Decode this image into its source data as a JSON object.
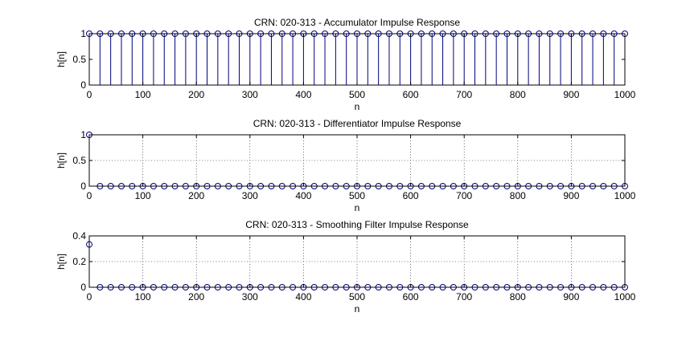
{
  "chart_data": [
    {
      "type": "stem",
      "title": "CRN: 020-313 - Accumulator Impulse Response",
      "xlabel": "n",
      "ylabel": "h[n]",
      "xlim": [
        0,
        1000
      ],
      "ylim": [
        0,
        1
      ],
      "xticks": [
        0,
        100,
        200,
        300,
        400,
        500,
        600,
        700,
        800,
        900,
        1000
      ],
      "xtick_labels": [
        "0",
        "100",
        "200",
        "300",
        "400",
        "500",
        "600",
        "700",
        "800",
        "900",
        "1000"
      ],
      "yticks": [
        0,
        0.5,
        1
      ],
      "ytick_labels": [
        "0",
        "0.5",
        "1"
      ],
      "grid": false,
      "marker_step": 20,
      "points": [
        {
          "from": 0,
          "to": 1000,
          "value": 1
        }
      ],
      "color": "#00007f"
    },
    {
      "type": "stem",
      "title": "CRN: 020-313 - Differentiator Impulse Response",
      "xlabel": "n",
      "ylabel": "h[n]",
      "xlim": [
        0,
        1000
      ],
      "ylim": [
        0,
        1
      ],
      "xticks": [
        0,
        100,
        200,
        300,
        400,
        500,
        600,
        700,
        800,
        900,
        1000
      ],
      "xtick_labels": [
        "0",
        "100",
        "200",
        "300",
        "400",
        "500",
        "600",
        "700",
        "800",
        "900",
        "1000"
      ],
      "yticks": [
        0,
        0.5,
        1
      ],
      "ytick_labels": [
        "0",
        "0.5",
        "1"
      ],
      "grid": true,
      "marker_step": 20,
      "points": [
        {
          "from": 0,
          "to": 0,
          "value": 1
        },
        {
          "from": 20,
          "to": 1000,
          "value": 0
        }
      ],
      "color": "#00007f"
    },
    {
      "type": "stem",
      "title": "CRN: 020-313 - Smoothing Filter Impulse Response",
      "xlabel": "n",
      "ylabel": "h[n]",
      "xlim": [
        0,
        1000
      ],
      "ylim": [
        0,
        0.4
      ],
      "xticks": [
        0,
        100,
        200,
        300,
        400,
        500,
        600,
        700,
        800,
        900,
        1000
      ],
      "xtick_labels": [
        "0",
        "100",
        "200",
        "300",
        "400",
        "500",
        "600",
        "700",
        "800",
        "900",
        "1000"
      ],
      "yticks": [
        0,
        0.2,
        0.4
      ],
      "ytick_labels": [
        "0",
        "0.2",
        "0.4"
      ],
      "grid": true,
      "marker_step": 20,
      "points": [
        {
          "from": 0,
          "to": 0,
          "value": 0.3333
        },
        {
          "from": 20,
          "to": 1000,
          "value": 0
        }
      ],
      "color": "#00007f"
    }
  ]
}
